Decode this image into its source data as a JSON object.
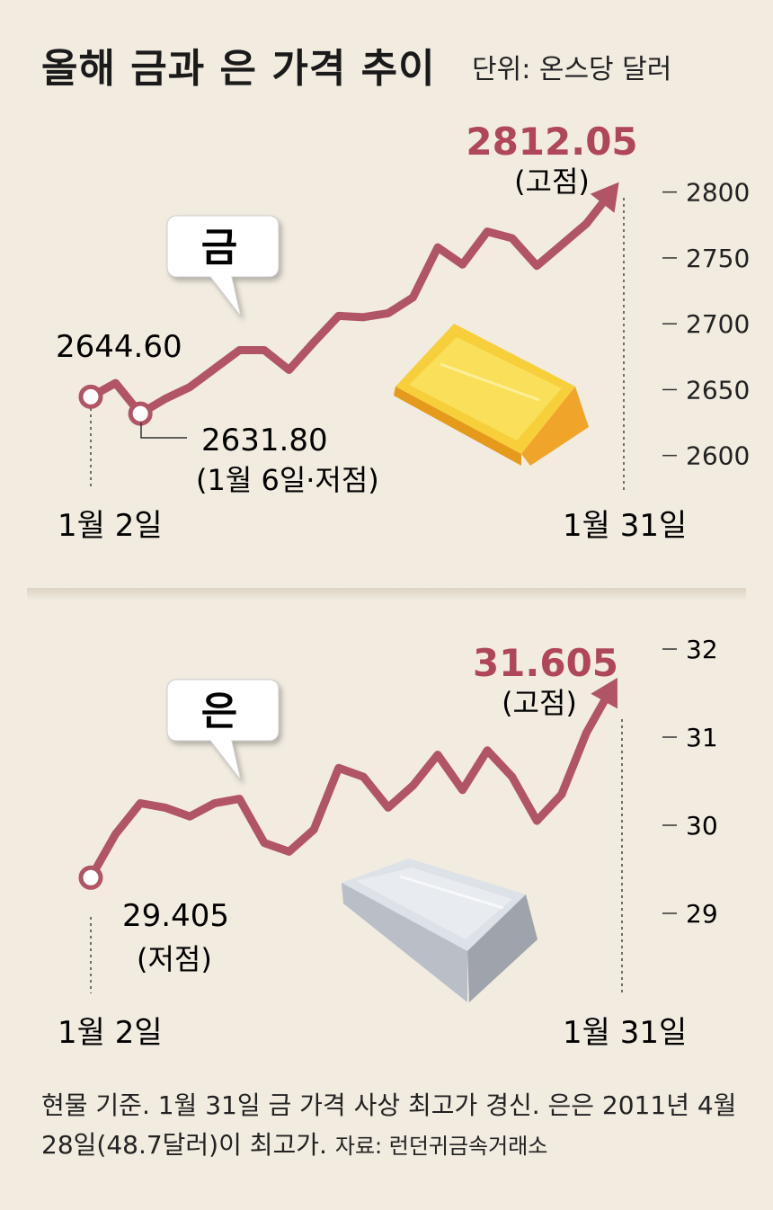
{
  "header": {
    "title": "올해 금과 은 가격 추이",
    "unit": "단위: 온스당 달러"
  },
  "colors": {
    "line": "#b05466",
    "accent_text": "#b04659",
    "background": "#f1ebe0",
    "gold": "#f4b82a",
    "silver": "#c9ced6"
  },
  "chart_data": [
    {
      "type": "line",
      "name": "gold",
      "callout": "금",
      "x_start_label": "1월 2일",
      "x_end_label": "1월 31일",
      "y_ticks": [
        "2800",
        "2750",
        "2700",
        "2650",
        "2600"
      ],
      "y_tick_values": [
        2800,
        2750,
        2700,
        2650,
        2600
      ],
      "ylim": [
        2590,
        2810
      ],
      "values": [
        2644.6,
        2655,
        2631.8,
        2643,
        2652,
        2666,
        2680,
        2680,
        2665,
        2686,
        2706,
        2705,
        2708,
        2720,
        2758,
        2745,
        2770,
        2765,
        2744,
        2760,
        2776,
        2800
      ],
      "start_value_label": "2644.60",
      "low_value_label": "2631.80",
      "low_note": "(1월 6일·저점)",
      "high_value_label": "2812.05",
      "high_note": "(고점)"
    },
    {
      "type": "line",
      "name": "silver",
      "callout": "은",
      "x_start_label": "1월 2일",
      "x_end_label": "1월 31일",
      "y_ticks": [
        "32",
        "31",
        "30",
        "29"
      ],
      "y_tick_values": [
        32,
        31,
        30,
        29
      ],
      "ylim": [
        28.6,
        32.2
      ],
      "values": [
        29.405,
        29.9,
        30.25,
        30.2,
        30.1,
        30.25,
        30.3,
        29.8,
        29.7,
        29.95,
        30.65,
        30.55,
        30.2,
        30.45,
        30.8,
        30.4,
        30.85,
        30.55,
        30.05,
        30.35,
        31.05,
        31.55
      ],
      "start_value_label": "29.405",
      "low_note": "(저점)",
      "high_value_label": "31.605",
      "high_note": "(고점)"
    }
  ],
  "footnote": {
    "text": "현물 기준. 1월 31일 금 가격 사상 최고가 경신. 은은 2011년 4월 28일(48.7달러)이 최고가.",
    "source": "자료: 런던귀금속거래소"
  }
}
